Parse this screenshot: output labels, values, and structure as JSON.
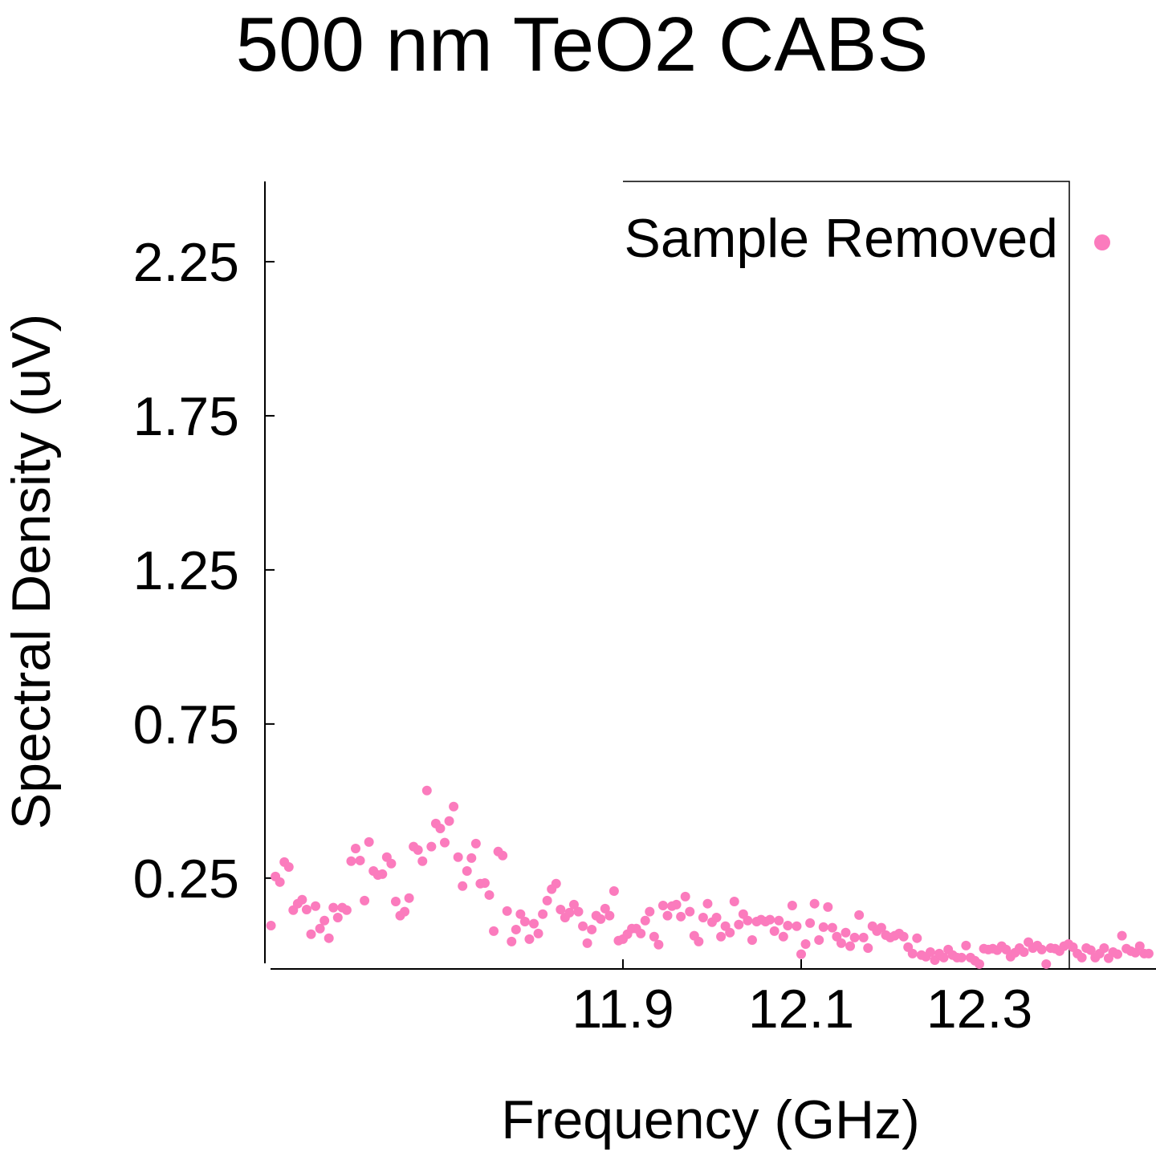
{
  "chart_data": {
    "type": "scatter",
    "title": "500 nm TeO2 CABS",
    "x_label": "Frequency (GHz)",
    "y_label": "Spectral Density (uV)",
    "xlim": [
      11.5,
      12.5
    ],
    "ylim": [
      -0.05,
      2.5
    ],
    "xticks": [
      11.9,
      12.1,
      12.3
    ],
    "yticks": [
      0.25,
      0.75,
      1.25,
      1.75,
      2.25
    ],
    "series": [
      {
        "name": "Sample Removed",
        "color": "#fb7bbd",
        "x": [
          11.505,
          11.51,
          11.515,
          11.52,
          11.525,
          11.53,
          11.535,
          11.54,
          11.545,
          11.55,
          11.555,
          11.56,
          11.565,
          11.57,
          11.575,
          11.58,
          11.585,
          11.59,
          11.595,
          11.6,
          11.605,
          11.61,
          11.615,
          11.62,
          11.625,
          11.63,
          11.635,
          11.64,
          11.645,
          11.65,
          11.655,
          11.66,
          11.665,
          11.67,
          11.675,
          11.68,
          11.685,
          11.69,
          11.695,
          11.7,
          11.705,
          11.71,
          11.715,
          11.72,
          11.725,
          11.73,
          11.735,
          11.74,
          11.745,
          11.75,
          11.755,
          11.76,
          11.765,
          11.77,
          11.775,
          11.78,
          11.785,
          11.79,
          11.795,
          11.8,
          11.805,
          11.81,
          11.815,
          11.82,
          11.825,
          11.83,
          11.835,
          11.84,
          11.845,
          11.85,
          11.855,
          11.86,
          11.865,
          11.87,
          11.875,
          11.88,
          11.885,
          11.89,
          11.895,
          11.9,
          11.905,
          11.91,
          11.915,
          11.92,
          11.925,
          11.93,
          11.935,
          11.94,
          11.945,
          11.95,
          11.955,
          11.96,
          11.965,
          11.97,
          11.975,
          11.98,
          11.985,
          11.99,
          11.995,
          12.0,
          12.005,
          12.01,
          12.015,
          12.02,
          12.025,
          12.03,
          12.035,
          12.04,
          12.045,
          12.05,
          12.055,
          12.06,
          12.065,
          12.07,
          12.075,
          12.08,
          12.085,
          12.09,
          12.095,
          12.1,
          12.105,
          12.11,
          12.115,
          12.12,
          12.125,
          12.13,
          12.135,
          12.14,
          12.145,
          12.15,
          12.155,
          12.16,
          12.165,
          12.17,
          12.175,
          12.18,
          12.185,
          12.19,
          12.195,
          12.2,
          12.205,
          12.21,
          12.215,
          12.22,
          12.225,
          12.23,
          12.235,
          12.24,
          12.245,
          12.25,
          12.255,
          12.26,
          12.265,
          12.27,
          12.275,
          12.28,
          12.285,
          12.29,
          12.295,
          12.3,
          12.305,
          12.31,
          12.315,
          12.32,
          12.325,
          12.33,
          12.335,
          12.34,
          12.345,
          12.35,
          12.355,
          12.36,
          12.365,
          12.37,
          12.375,
          12.38,
          12.385,
          12.39,
          12.395,
          12.4,
          12.405,
          12.41,
          12.415,
          12.42,
          12.425,
          12.43,
          12.435,
          12.44,
          12.445,
          12.45,
          12.455,
          12.46,
          12.465,
          12.47,
          12.475,
          12.48,
          12.485,
          12.49
        ],
        "values": [
          0.096,
          0.255,
          0.237,
          0.302,
          0.286,
          0.146,
          0.167,
          0.18,
          0.148,
          0.068,
          0.159,
          0.086,
          0.112,
          0.055,
          0.154,
          0.122,
          0.154,
          0.146,
          0.305,
          0.346,
          0.307,
          0.177,
          0.367,
          0.273,
          0.26,
          0.263,
          0.318,
          0.297,
          0.174,
          0.128,
          0.141,
          0.185,
          0.352,
          0.341,
          0.305,
          0.534,
          0.352,
          0.427,
          0.411,
          0.365,
          0.435,
          0.482,
          0.318,
          0.224,
          0.273,
          0.315,
          0.362,
          0.232,
          0.234,
          0.195,
          0.078,
          0.336,
          0.323,
          0.143,
          0.044,
          0.083,
          0.133,
          0.109,
          0.052,
          0.102,
          0.07,
          0.133,
          0.177,
          0.214,
          0.232,
          0.148,
          0.122,
          0.138,
          0.164,
          0.141,
          0.094,
          0.039,
          0.083,
          0.128,
          0.117,
          0.151,
          0.128,
          0.208,
          0.047,
          0.052,
          0.068,
          0.086,
          0.086,
          0.07,
          0.112,
          0.141,
          0.06,
          0.034,
          0.161,
          0.128,
          0.159,
          0.164,
          0.125,
          0.19,
          0.141,
          0.063,
          0.044,
          0.122,
          0.167,
          0.107,
          0.122,
          0.06,
          0.094,
          0.073,
          0.174,
          0.099,
          0.133,
          0.112,
          0.049,
          0.109,
          0.115,
          0.109,
          0.115,
          0.078,
          0.112,
          0.06,
          0.096,
          0.161,
          0.094,
          0.003,
          0.036,
          0.104,
          0.167,
          0.049,
          0.091,
          0.156,
          0.089,
          0.06,
          0.039,
          0.073,
          0.029,
          0.057,
          0.13,
          0.057,
          0.023,
          0.094,
          0.078,
          0.089,
          0.065,
          0.057,
          0.063,
          0.07,
          0.06,
          0.026,
          0.005,
          0.055,
          0,
          -0.005,
          0.01,
          -0.016,
          0.005,
          -0.008,
          0.018,
          0,
          -0.008,
          -0.008,
          0.031,
          -0.008,
          -0.018,
          -0.029,
          0.021,
          0.018,
          0.021,
          0.016,
          0.029,
          0.018,
          -0.005,
          0.008,
          0.023,
          0.01,
          0.042,
          0.023,
          0.031,
          0.018,
          -0.029,
          0.023,
          0.021,
          0.013,
          0.029,
          0.036,
          0.026,
          0.005,
          -0.008,
          0.023,
          0.016,
          -0.008,
          0.005,
          0.023,
          -0.01,
          0.01,
          0.003,
          0.063,
          0.021,
          0.013,
          0.008,
          0.029,
          0.005,
          0.005
        ]
      }
    ]
  }
}
